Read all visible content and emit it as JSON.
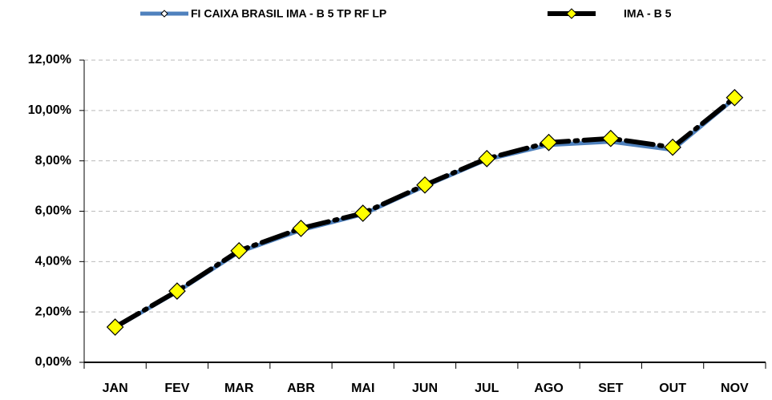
{
  "chart_data": {
    "type": "line",
    "categories": [
      "JAN",
      "FEV",
      "MAR",
      "ABR",
      "MAI",
      "JUN",
      "JUL",
      "AGO",
      "SET",
      "OUT",
      "NOV"
    ],
    "series": [
      {
        "name": "FI CAIXA BRASIL IMA - B 5 TP RF LP",
        "color": "#4f81bd",
        "values": [
          1.38,
          2.8,
          4.38,
          5.25,
          5.88,
          7.0,
          8.05,
          8.63,
          8.76,
          8.44,
          10.48
        ]
      },
      {
        "name": "IMA - B 5",
        "color": "#000000",
        "marker_color": "#ffff00",
        "values": [
          1.4,
          2.83,
          4.43,
          5.32,
          5.92,
          7.04,
          8.09,
          8.73,
          8.89,
          8.54,
          10.51
        ]
      }
    ],
    "ylim": [
      0,
      12
    ],
    "yticks": [
      {
        "value": 0,
        "label": "0,00%"
      },
      {
        "value": 2,
        "label": "2,00%"
      },
      {
        "value": 4,
        "label": "4,00%"
      },
      {
        "value": 6,
        "label": "6,00%"
      },
      {
        "value": 8,
        "label": "8,00%"
      },
      {
        "value": 10,
        "label": "10,00%"
      },
      {
        "value": 12,
        "label": "12,00%"
      }
    ],
    "grid": true,
    "legend": "top"
  }
}
